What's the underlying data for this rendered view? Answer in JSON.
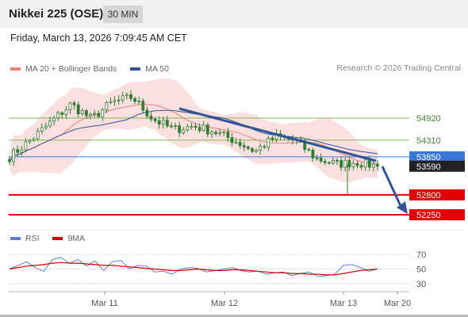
{
  "header": {
    "title": "Nikkei 225 (OSE)",
    "timeframe": "30 MIN"
  },
  "datetime": "Friday, March 13, 2026 7:09:45 AM CET",
  "legend": {
    "bollinger": "MA 20 + Bollinger Bands",
    "ma50": "MA 50",
    "copyright": "Research © 2026 Trading Central"
  },
  "rsi_legend": {
    "rsi": "RSI",
    "ma9": "9MA"
  },
  "colors": {
    "bollinger": "#f08080",
    "band_fill": "#fcd9d9",
    "ma50": "#2f5597",
    "candle": "#2e7d32",
    "support": "#e00000",
    "resistance": "#7cbb52",
    "pivot": "#3a78d8",
    "arrow": "#2f5597",
    "rsi": "#5b7fd6",
    "rsi_ma": "#d40000"
  },
  "chart_data": [
    {
      "type": "candlestick",
      "title": "Nikkei 225 (OSE)",
      "timeframe": "30 MIN",
      "x_ticks": [
        "Mar 11",
        "Mar 12",
        "Mar 13",
        "Mar 20"
      ],
      "ylim": [
        52000,
        55750
      ],
      "current_price": 53590,
      "series": [
        {
          "name": "MA 20 + Bollinger Bands",
          "type": "line"
        },
        {
          "name": "MA 50",
          "type": "line"
        }
      ],
      "levels": [
        {
          "value": 54920,
          "type": "resistance",
          "label": "54920"
        },
        {
          "value": 54310,
          "type": "resistance",
          "label": "54310"
        },
        {
          "value": 53850,
          "type": "pivot",
          "label": "53850"
        },
        {
          "value": 52800,
          "type": "support",
          "label": "52800"
        },
        {
          "value": 52250,
          "type": "support",
          "label": "52250"
        }
      ],
      "price_tag": "53590",
      "trendline": {
        "from": [
          "Mar 12",
          55050
        ],
        "to": [
          "Mar 13",
          53880
        ]
      },
      "candles_approx": [
        {
          "t": "Mar 10",
          "close": 53850
        },
        {
          "t": "Mar 10",
          "close": 54300
        },
        {
          "t": "Mar 10",
          "close": 54800
        },
        {
          "t": "Mar 11",
          "close": 55300
        },
        {
          "t": "Mar 11",
          "close": 54900
        },
        {
          "t": "Mar 11",
          "close": 55350
        },
        {
          "t": "Mar 11",
          "close": 55500
        },
        {
          "t": "Mar 12",
          "close": 54900
        },
        {
          "t": "Mar 12",
          "close": 54600
        },
        {
          "t": "Mar 12",
          "close": 54700
        },
        {
          "t": "Mar 12",
          "close": 54550
        },
        {
          "t": "Mar 12",
          "close": 54300
        },
        {
          "t": "Mar 12",
          "close": 54000
        },
        {
          "t": "Mar 12",
          "close": 54400
        },
        {
          "t": "Mar 12",
          "close": 54300
        },
        {
          "t": "Mar 13",
          "close": 53800
        },
        {
          "t": "Mar 13",
          "close": 53650
        },
        {
          "t": "Mar 13",
          "close": 53700
        },
        {
          "t": "Mar 13",
          "close": 53590
        }
      ]
    },
    {
      "type": "line",
      "title": "RSI",
      "ylim": [
        20,
        80
      ],
      "y_ticks": [
        70,
        50,
        30
      ],
      "series": [
        {
          "name": "RSI",
          "values": [
            50,
            55,
            60,
            52,
            47,
            63,
            66,
            58,
            63,
            54,
            61,
            48,
            60,
            62,
            50,
            55,
            54,
            46,
            47,
            43,
            50,
            52,
            51,
            46,
            48,
            50,
            52,
            48,
            46,
            47,
            43,
            45,
            46,
            41,
            44,
            46,
            40,
            41,
            43,
            55,
            56,
            52,
            47,
            50
          ]
        },
        {
          "name": "9MA",
          "values": [
            50,
            52,
            54,
            55,
            56,
            58,
            59,
            58,
            58,
            57,
            56,
            55,
            55,
            54,
            53,
            52,
            51,
            50,
            49,
            48,
            48,
            49,
            50,
            49,
            48,
            48,
            49,
            49,
            48,
            47,
            46,
            45,
            45,
            44,
            44,
            43,
            43,
            42,
            42,
            44,
            46,
            48,
            49,
            50
          ]
        }
      ]
    }
  ]
}
